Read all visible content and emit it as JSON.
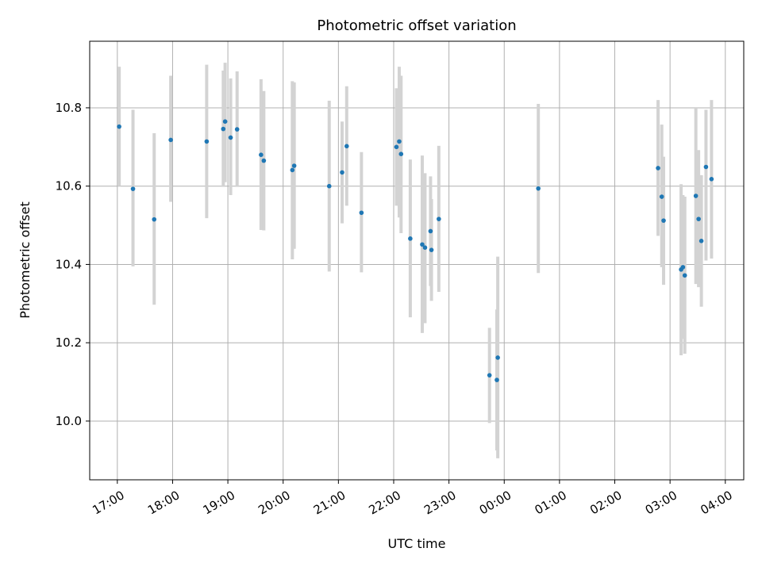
{
  "chart_data": {
    "type": "scatter",
    "title": "Photometric offset variation",
    "xlabel": "UTC time",
    "ylabel": "Photometric offset",
    "x_axis_kind": "time",
    "xlim": [
      "16:30",
      "04:20"
    ],
    "ylim": [
      9.85,
      10.97
    ],
    "grid": true,
    "x_ticks": [
      "17:00",
      "18:00",
      "19:00",
      "20:00",
      "21:00",
      "22:00",
      "23:00",
      "00:00",
      "01:00",
      "02:00",
      "03:00",
      "04:00"
    ],
    "y_ticks": [
      "10.0",
      "10.2",
      "10.4",
      "10.6",
      "10.8"
    ],
    "colors": {
      "point": "#1f77b4",
      "error_bar": "#d3d3d3",
      "grid": "#b0b0b0"
    },
    "series": [
      {
        "points": [
          {
            "x": "17:02",
            "y": 10.752,
            "yerr_low": 10.6,
            "yerr_high": 10.905
          },
          {
            "x": "17:17",
            "y": 10.593,
            "yerr_low": 10.395,
            "yerr_high": 10.795
          },
          {
            "x": "17:40",
            "y": 10.515,
            "yerr_low": 10.297,
            "yerr_high": 10.735
          },
          {
            "x": "17:58",
            "y": 10.718,
            "yerr_low": 10.56,
            "yerr_high": 10.882
          },
          {
            "x": "18:37",
            "y": 10.714,
            "yerr_low": 10.518,
            "yerr_high": 10.91
          },
          {
            "x": "18:55",
            "y": 10.746,
            "yerr_low": 10.598,
            "yerr_high": 10.895
          },
          {
            "x": "18:57",
            "y": 10.765,
            "yerr_low": 10.61,
            "yerr_high": 10.915
          },
          {
            "x": "19:03",
            "y": 10.724,
            "yerr_low": 10.577,
            "yerr_high": 10.875
          },
          {
            "x": "19:10",
            "y": 10.745,
            "yerr_low": 10.598,
            "yerr_high": 10.893
          },
          {
            "x": "19:36",
            "y": 10.68,
            "yerr_low": 10.488,
            "yerr_high": 10.873
          },
          {
            "x": "19:39",
            "y": 10.665,
            "yerr_low": 10.487,
            "yerr_high": 10.843
          },
          {
            "x": "20:10",
            "y": 10.641,
            "yerr_low": 10.413,
            "yerr_high": 10.868
          },
          {
            "x": "20:12",
            "y": 10.652,
            "yerr_low": 10.44,
            "yerr_high": 10.865
          },
          {
            "x": "20:50",
            "y": 10.6,
            "yerr_low": 10.382,
            "yerr_high": 10.818
          },
          {
            "x": "21:04",
            "y": 10.635,
            "yerr_low": 10.505,
            "yerr_high": 10.765
          },
          {
            "x": "21:09",
            "y": 10.702,
            "yerr_low": 10.55,
            "yerr_high": 10.855
          },
          {
            "x": "21:25",
            "y": 10.532,
            "yerr_low": 10.38,
            "yerr_high": 10.687
          },
          {
            "x": "22:03",
            "y": 10.7,
            "yerr_low": 10.55,
            "yerr_high": 10.85
          },
          {
            "x": "22:06",
            "y": 10.714,
            "yerr_low": 10.52,
            "yerr_high": 10.905
          },
          {
            "x": "22:08",
            "y": 10.682,
            "yerr_low": 10.48,
            "yerr_high": 10.882
          },
          {
            "x": "22:18",
            "y": 10.466,
            "yerr_low": 10.265,
            "yerr_high": 10.668
          },
          {
            "x": "22:31",
            "y": 10.451,
            "yerr_low": 10.225,
            "yerr_high": 10.678
          },
          {
            "x": "22:34",
            "y": 10.443,
            "yerr_low": 10.25,
            "yerr_high": 10.633
          },
          {
            "x": "22:40",
            "y": 10.485,
            "yerr_low": 10.345,
            "yerr_high": 10.625
          },
          {
            "x": "22:41",
            "y": 10.437,
            "yerr_low": 10.307,
            "yerr_high": 10.567
          },
          {
            "x": "22:49",
            "y": 10.516,
            "yerr_low": 10.33,
            "yerr_high": 10.703
          },
          {
            "x": "23:44",
            "y": 10.117,
            "yerr_low": 9.995,
            "yerr_high": 10.238
          },
          {
            "x": "23:52",
            "y": 10.105,
            "yerr_low": 9.925,
            "yerr_high": 10.285
          },
          {
            "x": "23:53",
            "y": 10.162,
            "yerr_low": 9.905,
            "yerr_high": 10.42
          },
          {
            "x": "00:37",
            "y": 10.594,
            "yerr_low": 10.378,
            "yerr_high": 10.81
          },
          {
            "x": "02:47",
            "y": 10.646,
            "yerr_low": 10.473,
            "yerr_high": 10.82
          },
          {
            "x": "02:51",
            "y": 10.573,
            "yerr_low": 10.393,
            "yerr_high": 10.757
          },
          {
            "x": "02:53",
            "y": 10.512,
            "yerr_low": 10.348,
            "yerr_high": 10.675
          },
          {
            "x": "03:12",
            "y": 10.387,
            "yerr_low": 10.168,
            "yerr_high": 10.605
          },
          {
            "x": "03:14",
            "y": 10.393,
            "yerr_low": 10.21,
            "yerr_high": 10.577
          },
          {
            "x": "03:16",
            "y": 10.372,
            "yerr_low": 10.172,
            "yerr_high": 10.573
          },
          {
            "x": "03:28",
            "y": 10.575,
            "yerr_low": 10.35,
            "yerr_high": 10.8
          },
          {
            "x": "03:31",
            "y": 10.516,
            "yerr_low": 10.342,
            "yerr_high": 10.692
          },
          {
            "x": "03:34",
            "y": 10.46,
            "yerr_low": 10.292,
            "yerr_high": 10.628
          },
          {
            "x": "03:39",
            "y": 10.649,
            "yerr_low": 10.41,
            "yerr_high": 10.795
          },
          {
            "x": "03:45",
            "y": 10.618,
            "yerr_low": 10.415,
            "yerr_high": 10.82
          }
        ]
      }
    ]
  }
}
